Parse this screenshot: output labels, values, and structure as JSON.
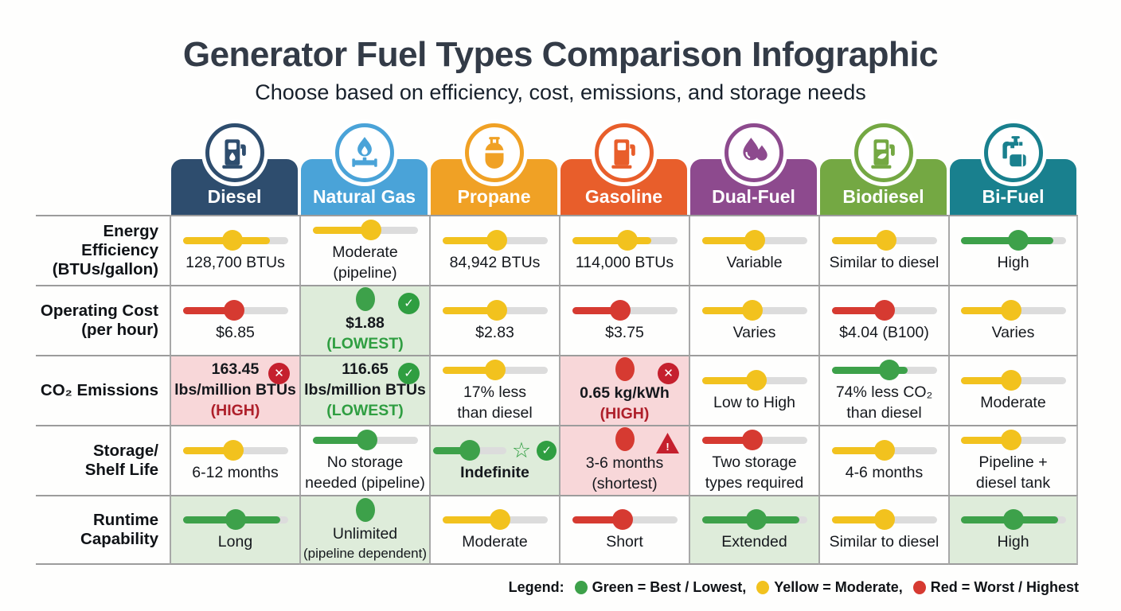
{
  "title": "Generator Fuel Types Comparison Infographic",
  "subtitle": "Choose based on efficiency, cost, emissions, and storage needs",
  "palette": {
    "yellow": "#f2c21e",
    "green": "#3da14a",
    "red": "#d63a31",
    "track_gray": "#dcdcdc",
    "highlight_green": "#deecda",
    "highlight_red": "#f8d7d9",
    "text_green": "#2f9e41",
    "text_red": "#ae1f2a",
    "badge_green": "#2f9e41",
    "badge_red": "#c5202e"
  },
  "columns": [
    {
      "key": "diesel",
      "name": "Diesel",
      "color": "#2e4d6e",
      "icon": "fuel-pump-drop-icon"
    },
    {
      "key": "natural-gas",
      "name": "Natural Gas",
      "color": "#4aa3d8",
      "icon": "gas-flame-valve-icon"
    },
    {
      "key": "propane",
      "name": "Propane",
      "color": "#f0a125",
      "icon": "propane-tank-icon"
    },
    {
      "key": "gasoline",
      "name": "Gasoline",
      "color": "#e85e2b",
      "icon": "fuel-pump-icon"
    },
    {
      "key": "dual-fuel",
      "name": "Dual-Fuel",
      "color": "#8d4a8e",
      "icon": "fuel-drops-icon"
    },
    {
      "key": "biodiesel",
      "name": "Biodiesel",
      "color": "#74a843",
      "icon": "eco-fuel-pump-icon"
    },
    {
      "key": "bi-fuel",
      "name": "Bi-Fuel",
      "color": "#19808e",
      "icon": "pipe-tank-icon"
    }
  ],
  "rows": [
    {
      "key": "energy-efficiency",
      "label_lines": [
        "Energy Efficiency",
        "(BTUs/gallon)"
      ],
      "cells": [
        {
          "ind": "slider",
          "color": "yellow",
          "fill": 83,
          "knob": 47,
          "lines": [
            {
              "t": "128,700 BTUs"
            }
          ]
        },
        {
          "ind": "slider",
          "color": "yellow",
          "fill": 62,
          "knob": 56,
          "lines": [
            {
              "t": "Moderate"
            },
            {
              "t": "(pipeline)"
            }
          ]
        },
        {
          "ind": "slider",
          "color": "yellow",
          "fill": 60,
          "knob": 52,
          "lines": [
            {
              "t": "84,942 BTUs"
            }
          ]
        },
        {
          "ind": "slider",
          "color": "yellow",
          "fill": 75,
          "knob": 53,
          "lines": [
            {
              "t": "114,000 BTUs"
            }
          ]
        },
        {
          "ind": "slider",
          "color": "yellow",
          "fill": 56,
          "knob": 50,
          "lines": [
            {
              "t": "Variable"
            }
          ]
        },
        {
          "ind": "slider",
          "color": "yellow",
          "fill": 58,
          "knob": 52,
          "lines": [
            {
              "t": "Similar to diesel"
            }
          ]
        },
        {
          "ind": "slider",
          "color": "green",
          "fill": 88,
          "knob": 55,
          "lines": [
            {
              "t": "High"
            }
          ]
        }
      ]
    },
    {
      "key": "operating-cost",
      "label_lines": [
        "Operating Cost",
        "(per hour)"
      ],
      "cells": [
        {
          "ind": "slider",
          "color": "red",
          "fill": 57,
          "knob": 49,
          "lines": [
            {
              "t": "$6.85"
            }
          ]
        },
        {
          "hl": "green",
          "ind": "dot",
          "color": "green",
          "badge": "check",
          "lines": [
            {
              "t": "$1.88",
              "b": 1
            },
            {
              "t": "(LOWEST)",
              "b": 1,
              "c": "green"
            }
          ]
        },
        {
          "ind": "slider",
          "color": "yellow",
          "fill": 58,
          "knob": 52,
          "lines": [
            {
              "t": "$2.83"
            }
          ]
        },
        {
          "ind": "slider",
          "color": "red",
          "fill": 55,
          "knob": 46,
          "lines": [
            {
              "t": "$3.75"
            }
          ]
        },
        {
          "ind": "slider",
          "color": "yellow",
          "fill": 53,
          "knob": 48,
          "lines": [
            {
              "t": "Varies"
            }
          ]
        },
        {
          "ind": "slider",
          "color": "red",
          "fill": 58,
          "knob": 50,
          "lines": [
            {
              "t": "$4.04 (B100)"
            }
          ]
        },
        {
          "ind": "slider",
          "color": "yellow",
          "fill": 53,
          "knob": 48,
          "lines": [
            {
              "t": "Varies"
            }
          ]
        }
      ]
    },
    {
      "key": "co2-emissions",
      "label_lines": [
        "CO₂ Emissions"
      ],
      "cells": [
        {
          "hl": "red",
          "badge": "cross",
          "lines": [
            {
              "t": "163.45",
              "b": 1
            },
            {
              "t": "lbs/million BTUs",
              "b": 1
            },
            {
              "t": "(HIGH)",
              "b": 1,
              "c": "red"
            }
          ]
        },
        {
          "hl": "green",
          "badge": "check",
          "lines": [
            {
              "t": "116.65",
              "b": 1
            },
            {
              "t": "lbs/million BTUs",
              "b": 1
            },
            {
              "t": "(LOWEST)",
              "b": 1,
              "c": "green"
            }
          ]
        },
        {
          "ind": "slider",
          "color": "yellow",
          "fill": 58,
          "knob": 50,
          "lines": [
            {
              "t": "17% less"
            },
            {
              "t": "than diesel"
            }
          ]
        },
        {
          "hl": "red",
          "ind": "dot",
          "color": "red",
          "badge": "cross",
          "lines": [
            {
              "t": "0.65 kg/kWh",
              "b": 1
            },
            {
              "t": "(HIGH)",
              "b": 1,
              "c": "red"
            }
          ]
        },
        {
          "ind": "slider",
          "color": "yellow",
          "fill": 62,
          "knob": 52,
          "lines": [
            {
              "t": "Low to High"
            }
          ]
        },
        {
          "ind": "slider",
          "color": "green",
          "fill": 72,
          "knob": 55,
          "lines": [
            {
              "t": "74% less CO₂"
            },
            {
              "t": "than diesel"
            }
          ]
        },
        {
          "ind": "slider",
          "color": "yellow",
          "fill": 55,
          "knob": 48,
          "lines": [
            {
              "t": "Moderate"
            }
          ]
        }
      ]
    },
    {
      "key": "storage-shelf-life",
      "label_lines": [
        "Storage/",
        "Shelf Life"
      ],
      "cells": [
        {
          "ind": "slider",
          "color": "yellow",
          "fill": 58,
          "knob": 48,
          "lines": [
            {
              "t": "6-12 months"
            }
          ]
        },
        {
          "ind": "slider",
          "color": "green",
          "fill": 58,
          "knob": 52,
          "lines": [
            {
              "t": "No storage"
            },
            {
              "t": "needed (pipeline)"
            }
          ]
        },
        {
          "hl": "green",
          "ind": "slider",
          "short": 1,
          "color": "green",
          "fill": 58,
          "knob": 50,
          "star": 1,
          "badge": "check",
          "lines": [
            {
              "t": "Indefinite",
              "b": 1
            }
          ]
        },
        {
          "hl": "red",
          "ind": "dot",
          "color": "red",
          "badge": "warn",
          "lines": [
            {
              "t": "3-6 months"
            },
            {
              "t": "(shortest)"
            }
          ]
        },
        {
          "ind": "slider",
          "color": "red",
          "fill": 55,
          "knob": 48,
          "lines": [
            {
              "t": "Two storage"
            },
            {
              "t": "types required"
            }
          ]
        },
        {
          "ind": "slider",
          "color": "yellow",
          "fill": 55,
          "knob": 50,
          "lines": [
            {
              "t": "4-6 months"
            }
          ]
        },
        {
          "ind": "slider",
          "color": "yellow",
          "fill": 55,
          "knob": 48,
          "lines": [
            {
              "t": "Pipeline +"
            },
            {
              "t": "diesel tank"
            }
          ]
        }
      ]
    },
    {
      "key": "runtime-capability",
      "label_lines": [
        "Runtime",
        "Capability"
      ],
      "cells": [
        {
          "hl": "green",
          "ind": "slider",
          "color": "green",
          "fill": 93,
          "knob": 50,
          "lines": [
            {
              "t": "Long"
            }
          ]
        },
        {
          "hl": "green",
          "ind": "dot",
          "color": "green",
          "lines": [
            {
              "t": "Unlimited"
            },
            {
              "t": "(pipeline dependent)",
              "small": 1
            }
          ]
        },
        {
          "ind": "slider",
          "color": "yellow",
          "fill": 62,
          "knob": 55,
          "lines": [
            {
              "t": "Moderate"
            }
          ]
        },
        {
          "ind": "slider",
          "color": "red",
          "fill": 55,
          "knob": 48,
          "lines": [
            {
              "t": "Short"
            }
          ]
        },
        {
          "hl": "green",
          "ind": "slider",
          "color": "green",
          "fill": 93,
          "knob": 52,
          "lines": [
            {
              "t": "Extended"
            }
          ]
        },
        {
          "ind": "slider",
          "color": "yellow",
          "fill": 55,
          "knob": 50,
          "lines": [
            {
              "t": "Similar to diesel"
            }
          ]
        },
        {
          "hl": "green",
          "ind": "slider",
          "color": "green",
          "fill": 93,
          "knob": 50,
          "lines": [
            {
              "t": "High"
            }
          ]
        }
      ]
    }
  ],
  "legend": {
    "label": "Legend:",
    "items": [
      {
        "color": "#3da14a",
        "text": "Green = Best / Lowest,"
      },
      {
        "color": "#f2c21e",
        "text": "Yellow = Moderate,"
      },
      {
        "color": "#d63a31",
        "text": "Red = Worst / Highest"
      }
    ]
  },
  "chart_data": {
    "type": "table",
    "title": "Generator Fuel Types Comparison Infographic",
    "columns": [
      "Diesel",
      "Natural Gas",
      "Propane",
      "Gasoline",
      "Dual-Fuel",
      "Biodiesel",
      "Bi-Fuel"
    ],
    "row_headers": [
      "Energy Efficiency (BTUs/gallon)",
      "Operating Cost (per hour)",
      "CO₂ Emissions",
      "Storage/Shelf Life",
      "Runtime Capability"
    ],
    "cells": [
      [
        "128,700 BTUs",
        "Moderate (pipeline)",
        "84,942 BTUs",
        "114,000 BTUs",
        "Variable",
        "Similar to diesel",
        "High"
      ],
      [
        "$6.85",
        "$1.88 (LOWEST)",
        "$2.83",
        "$3.75",
        "Varies",
        "$4.04 (B100)",
        "Varies"
      ],
      [
        "163.45 lbs/million BTUs (HIGH)",
        "116.65 lbs/million BTUs (LOWEST)",
        "17% less than diesel",
        "0.65 kg/kWh (HIGH)",
        "Low to High",
        "74% less CO₂ than diesel",
        "Moderate"
      ],
      [
        "6-12 months",
        "No storage needed (pipeline)",
        "Indefinite",
        "3-6 months (shortest)",
        "Two storage types required",
        "4-6 months",
        "Pipeline + diesel tank"
      ],
      [
        "Long",
        "Unlimited (pipeline dependent)",
        "Moderate",
        "Short",
        "Extended",
        "Similar to diesel",
        "High"
      ]
    ],
    "ratings": [
      [
        "yellow",
        "yellow",
        "yellow",
        "yellow",
        "yellow",
        "yellow",
        "green"
      ],
      [
        "red",
        "green",
        "yellow",
        "red",
        "yellow",
        "red",
        "yellow"
      ],
      [
        "red",
        "green",
        "yellow",
        "red",
        "yellow",
        "green",
        "yellow"
      ],
      [
        "yellow",
        "green",
        "green",
        "red",
        "red",
        "yellow",
        "yellow"
      ],
      [
        "green",
        "green",
        "yellow",
        "red",
        "green",
        "yellow",
        "green"
      ]
    ],
    "legend": [
      "Green = Best / Lowest",
      "Yellow = Moderate",
      "Red = Worst / Highest"
    ]
  }
}
